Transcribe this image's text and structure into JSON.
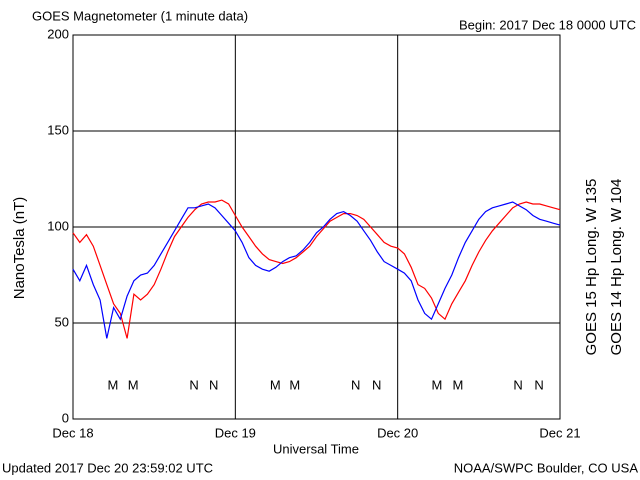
{
  "chart_data": {
    "type": "line",
    "title": "GOES Magnetometer (1 minute data)",
    "subtitle": "Begin:  2017 Dec 18 0000 UTC",
    "y_label": "NanoTesla (nT)",
    "x_label": "Universal Time",
    "footer_left": "Updated 2017 Dec 20 23:59:02 UTC",
    "footer_right": "NOAA/SWPC Boulder, CO USA",
    "x": [
      0,
      1,
      2,
      3,
      4,
      5,
      6,
      7,
      8,
      9,
      10,
      11,
      12,
      13,
      14,
      15,
      16,
      17,
      18,
      19,
      20,
      21,
      22,
      23,
      24,
      25,
      26,
      27,
      28,
      29,
      30,
      31,
      32,
      33,
      34,
      35,
      36,
      37,
      38,
      39,
      40,
      41,
      42,
      43,
      44,
      45,
      46,
      47,
      48,
      49,
      50,
      51,
      52,
      53,
      54,
      55,
      56,
      57,
      58,
      59,
      60,
      61,
      62,
      63,
      64,
      65,
      66,
      67,
      68,
      69,
      70,
      71,
      72
    ],
    "xlim": [
      0,
      72
    ],
    "xticks": [
      {
        "value": 0,
        "label": "Dec 18"
      },
      {
        "value": 24,
        "label": "Dec 19"
      },
      {
        "value": 48,
        "label": "Dec 20"
      },
      {
        "value": 72,
        "label": "Dec 21"
      }
    ],
    "ylim": [
      0,
      200
    ],
    "yticks": [
      0,
      50,
      100,
      150,
      200
    ],
    "grid": true,
    "series": [
      {
        "name": "GOES 15 Hp  Long. W 135",
        "color": "#ff0000",
        "values": [
          97,
          92,
          96,
          90,
          80,
          70,
          60,
          55,
          42,
          65,
          62,
          65,
          70,
          78,
          87,
          95,
          100,
          105,
          109,
          112,
          113,
          113,
          114,
          112,
          106,
          100,
          95,
          90,
          86,
          83,
          82,
          81,
          82,
          84,
          87,
          90,
          95,
          99,
          103,
          105,
          107,
          107,
          106,
          104,
          100,
          96,
          92,
          90,
          89,
          86,
          79,
          70,
          68,
          63,
          55,
          52,
          60,
          66,
          72,
          80,
          87,
          93,
          98,
          102,
          106,
          110,
          112,
          113,
          112,
          112,
          111,
          110,
          109
        ]
      },
      {
        "name": "GOES 14 Hp  Long. W 104",
        "color": "#0000ff",
        "values": [
          78,
          72,
          80,
          70,
          62,
          42,
          58,
          52,
          64,
          72,
          75,
          76,
          80,
          86,
          92,
          98,
          104,
          110,
          110,
          111,
          112,
          110,
          106,
          102,
          98,
          92,
          84,
          80,
          78,
          77,
          79,
          82,
          84,
          85,
          88,
          92,
          97,
          100,
          104,
          107,
          108,
          106,
          103,
          98,
          93,
          87,
          82,
          80,
          78,
          76,
          72,
          62,
          55,
          52,
          60,
          68,
          75,
          84,
          92,
          98,
          104,
          108,
          110,
          111,
          112,
          113,
          111,
          109,
          106,
          104,
          103,
          102,
          101
        ]
      }
    ],
    "markers": [
      {
        "text": "M",
        "x": 5.9,
        "color": "#0000ff"
      },
      {
        "text": "M",
        "x": 8.9,
        "color": "#ff0000"
      },
      {
        "text": "N",
        "x": 17.9,
        "color": "#0000ff"
      },
      {
        "text": "N",
        "x": 20.8,
        "color": "#ff0000"
      },
      {
        "text": "M",
        "x": 29.9,
        "color": "#0000ff"
      },
      {
        "text": "M",
        "x": 32.8,
        "color": "#ff0000"
      },
      {
        "text": "N",
        "x": 41.8,
        "color": "#0000ff"
      },
      {
        "text": "N",
        "x": 44.9,
        "color": "#ff0000"
      },
      {
        "text": "M",
        "x": 53.8,
        "color": "#0000ff"
      },
      {
        "text": "M",
        "x": 56.9,
        "color": "#ff0000"
      },
      {
        "text": "N",
        "x": 65.8,
        "color": "#0000ff"
      },
      {
        "text": "N",
        "x": 68.9,
        "color": "#ff0000"
      }
    ]
  }
}
